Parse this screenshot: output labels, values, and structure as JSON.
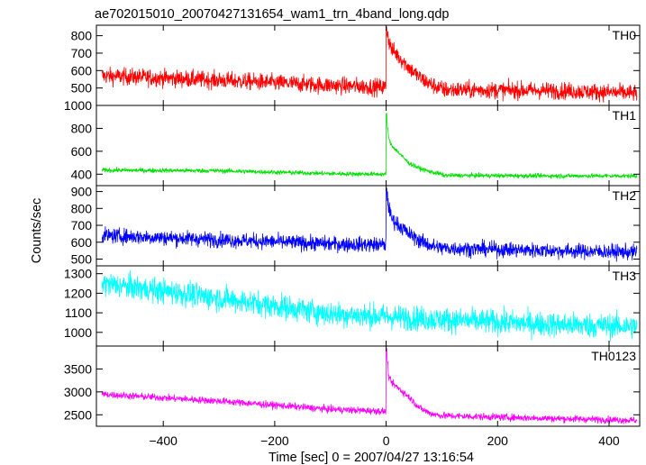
{
  "chart_data": {
    "type": "line",
    "title": "ae702015010_20070427131654_wam1_trn_4band_long.qdp",
    "xlabel": "Time [sec] 0 = 2007/04/27 13:16:54",
    "ylabel": "Counts/sec",
    "xlim": [
      -520,
      455
    ],
    "x_ticks": [
      -400,
      -200,
      0,
      200,
      400
    ],
    "grid": false,
    "panels": [
      {
        "name": "TH0",
        "color": "#ff0000",
        "ylim": [
          400,
          860
        ],
        "y_ticks": [
          500,
          600,
          700,
          800
        ],
        "noise": 35,
        "trend": [
          [
            -510,
            570
          ],
          [
            -300,
            545
          ],
          [
            -100,
            515
          ],
          [
            -10,
            505
          ],
          [
            100,
            490
          ],
          [
            300,
            485
          ],
          [
            450,
            470
          ]
        ],
        "peak": [
          [
            0,
            850
          ],
          [
            5,
            770
          ],
          [
            10,
            720
          ],
          [
            20,
            690
          ],
          [
            40,
            620
          ],
          [
            60,
            560
          ],
          [
            80,
            520
          ],
          [
            100,
            495
          ]
        ]
      },
      {
        "name": "TH1",
        "color": "#00e000",
        "ylim": [
          300,
          1000
        ],
        "y_ticks": [
          400,
          600,
          800,
          1000
        ],
        "noise": 14,
        "trend": [
          [
            -510,
            435
          ],
          [
            -300,
            430
          ],
          [
            -100,
            405
          ],
          [
            -10,
            400
          ],
          [
            100,
            390
          ],
          [
            300,
            385
          ],
          [
            450,
            385
          ]
        ],
        "peak": [
          [
            0,
            930
          ],
          [
            5,
            700
          ],
          [
            10,
            650
          ],
          [
            20,
            600
          ],
          [
            40,
            500
          ],
          [
            60,
            450
          ],
          [
            80,
            420
          ],
          [
            100,
            400
          ]
        ]
      },
      {
        "name": "TH2",
        "color": "#0000ff",
        "ylim": [
          460,
          935
        ],
        "y_ticks": [
          500,
          600,
          700,
          800,
          900
        ],
        "noise": 32,
        "trend": [
          [
            -510,
            640
          ],
          [
            -300,
            615
          ],
          [
            -100,
            590
          ],
          [
            -10,
            585
          ],
          [
            100,
            565
          ],
          [
            300,
            550
          ],
          [
            450,
            540
          ]
        ],
        "peak": [
          [
            0,
            920
          ],
          [
            5,
            800
          ],
          [
            10,
            740
          ],
          [
            20,
            710
          ],
          [
            40,
            650
          ],
          [
            60,
            610
          ],
          [
            80,
            580
          ],
          [
            100,
            565
          ]
        ]
      },
      {
        "name": "TH3",
        "color": "#00ffff",
        "ylim": [
          930,
          1340
        ],
        "y_ticks": [
          1000,
          1100,
          1200,
          1300
        ],
        "noise": 45,
        "trend": [
          [
            -510,
            1250
          ],
          [
            -300,
            1175
          ],
          [
            -100,
            1095
          ],
          [
            0,
            1080
          ],
          [
            100,
            1065
          ],
          [
            300,
            1040
          ],
          [
            450,
            1030
          ]
        ],
        "peak": [
          [
            0,
            1080
          ],
          [
            100,
            1065
          ]
        ]
      },
      {
        "name": "TH0123",
        "color": "#ff00ff",
        "ylim": [
          2250,
          4000
        ],
        "y_ticks": [
          2500,
          3000,
          3500
        ],
        "noise": 55,
        "trend": [
          [
            -510,
            2950
          ],
          [
            -300,
            2800
          ],
          [
            -100,
            2620
          ],
          [
            -10,
            2580
          ],
          [
            100,
            2480
          ],
          [
            300,
            2420
          ],
          [
            450,
            2380
          ]
        ],
        "peak": [
          [
            0,
            3950
          ],
          [
            5,
            3300
          ],
          [
            10,
            3200
          ],
          [
            20,
            3100
          ],
          [
            40,
            2900
          ],
          [
            60,
            2650
          ],
          [
            80,
            2530
          ],
          [
            100,
            2480
          ]
        ]
      }
    ]
  }
}
